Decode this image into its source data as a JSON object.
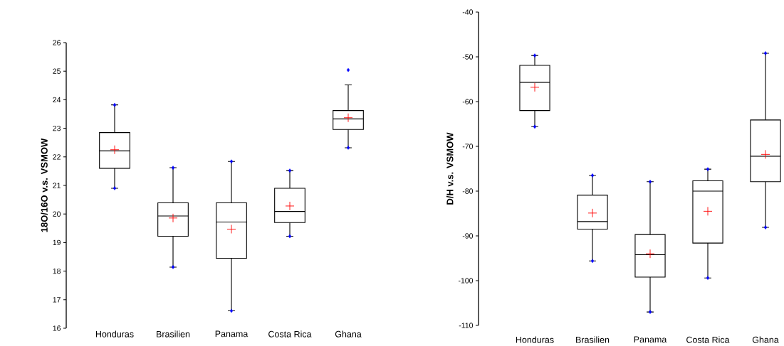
{
  "chart_data": [
    {
      "type": "box",
      "ylabel": "18O/16O v.s. VSMOW",
      "categories": [
        "Honduras",
        "Brasilien",
        "Panama",
        "Costa Rica",
        "Ghana"
      ],
      "boxes": [
        {
          "low": 20.9,
          "q1": 21.6,
          "median": 22.21,
          "q3": 22.85,
          "high": 23.82,
          "mean": 22.25,
          "outliers": [
            20.9,
            23.82
          ]
        },
        {
          "low": 18.14,
          "q1": 19.22,
          "median": 19.93,
          "q3": 20.39,
          "high": 21.62,
          "mean": 19.86,
          "outliers": [
            18.14,
            21.62
          ]
        },
        {
          "low": 16.61,
          "q1": 18.45,
          "median": 19.72,
          "q3": 20.39,
          "high": 21.84,
          "mean": 19.47,
          "outliers": [
            16.61,
            21.84
          ]
        },
        {
          "low": 19.22,
          "q1": 19.7,
          "median": 20.09,
          "q3": 20.9,
          "high": 21.52,
          "mean": 20.28,
          "outliers": [
            19.22,
            21.52
          ]
        },
        {
          "low": 22.32,
          "q1": 22.96,
          "median": 23.33,
          "q3": 23.62,
          "high": 24.52,
          "mean": 23.37,
          "outliers": [
            22.32,
            25.04
          ]
        }
      ],
      "ylim": [
        16,
        26
      ],
      "yticks": [
        16,
        17,
        18,
        19,
        20,
        21,
        22,
        23,
        24,
        25,
        26
      ],
      "marker": "diamond"
    },
    {
      "type": "box",
      "ylabel": "D/H v.s. VSMOW",
      "categories": [
        "Honduras",
        "Brasilien",
        "Panama",
        "Costa Rica",
        "Ghana"
      ],
      "boxes": [
        {
          "low": -65.6,
          "q1": -62.0,
          "median": -55.7,
          "q3": -51.9,
          "high": -49.7,
          "mean": -56.8,
          "outliers": [
            -65.6,
            -49.7
          ]
        },
        {
          "low": -95.6,
          "q1": -88.5,
          "median": -86.8,
          "q3": -80.9,
          "high": -76.5,
          "mean": -84.9,
          "outliers": [
            -95.6,
            -76.5
          ]
        },
        {
          "low": -107.0,
          "q1": -99.2,
          "median": -94.2,
          "q3": -89.7,
          "high": -77.9,
          "mean": -94.0,
          "outliers": [
            -107.0,
            -77.9
          ]
        },
        {
          "low": -99.4,
          "q1": -91.6,
          "median": -80.0,
          "q3": -77.7,
          "high": -75.1,
          "mean": -84.5,
          "outliers": [
            -99.4,
            -75.1
          ]
        },
        {
          "low": -88.1,
          "q1": -77.9,
          "median": -72.2,
          "q3": -64.1,
          "high": -49.2,
          "mean": -71.8,
          "outliers": [
            -88.1,
            -49.2
          ]
        }
      ],
      "ylim": [
        -110,
        -40
      ],
      "yticks": [
        -110,
        -100,
        -90,
        -80,
        -70,
        -60,
        -50,
        -40
      ],
      "marker": "diamond"
    }
  ]
}
